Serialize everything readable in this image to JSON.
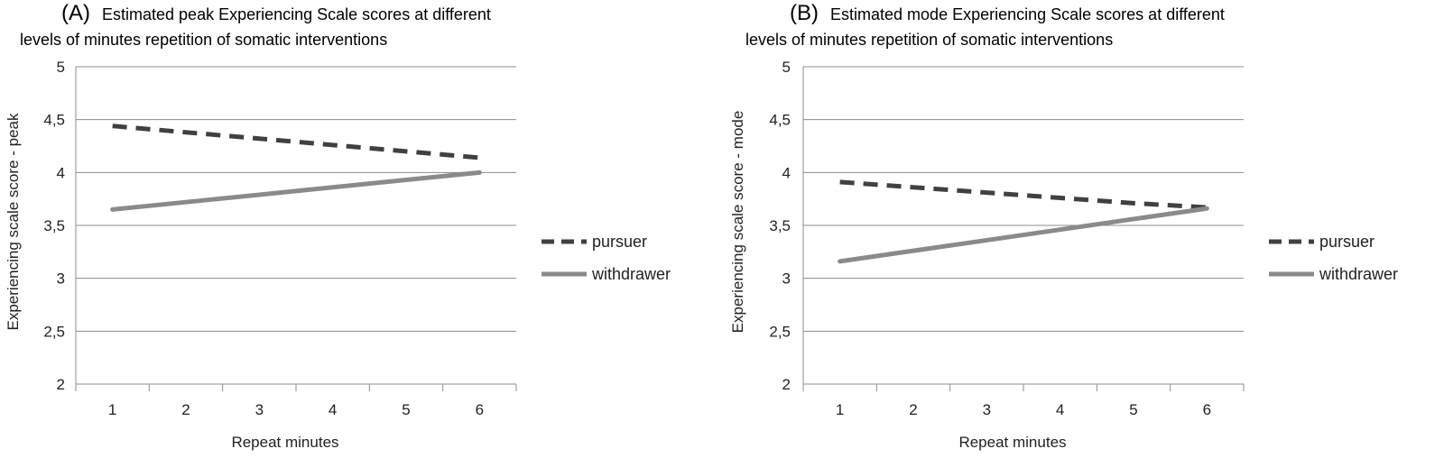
{
  "chart_data": [
    {
      "type": "line",
      "panel_label": "(A)",
      "title_line1": "Estimated peak Experiencing Scale scores at different",
      "title_line2": "levels of minutes repetition  of somatic interventions",
      "xlabel": "Repeat minutes",
      "ylabel": "Experiencing scale score - peak",
      "categories": [
        1,
        2,
        3,
        4,
        5,
        6
      ],
      "ylim": [
        2,
        5
      ],
      "yticks": [
        "2",
        "2,5",
        "3",
        "3,5",
        "4",
        "4,5",
        "5"
      ],
      "grid": true,
      "legend_position": "right",
      "series": [
        {
          "name": "pursuer",
          "style": "dashed",
          "color": "#404040",
          "values": [
            4.44,
            4.38,
            4.32,
            4.26,
            4.2,
            4.14
          ]
        },
        {
          "name": "withdrawer",
          "style": "solid",
          "color": "#8a8a8a",
          "values": [
            3.65,
            3.72,
            3.79,
            3.86,
            3.93,
            4.0
          ]
        }
      ]
    },
    {
      "type": "line",
      "panel_label": "(B)",
      "title_line1": "Estimated mode  Experiencing Scale scores at different",
      "title_line2": "levels of minutes repetition  of somatic interventions",
      "xlabel": "Repeat minutes",
      "ylabel": "Experiencing scale score - mode",
      "categories": [
        1,
        2,
        3,
        4,
        5,
        6
      ],
      "ylim": [
        2,
        5
      ],
      "yticks": [
        "2",
        "2,5",
        "3",
        "3,5",
        "4",
        "4,5",
        "5"
      ],
      "grid": true,
      "legend_position": "right",
      "series": [
        {
          "name": "pursuer",
          "style": "dashed",
          "color": "#404040",
          "values": [
            3.91,
            3.86,
            3.81,
            3.76,
            3.71,
            3.67
          ]
        },
        {
          "name": "withdrawer",
          "style": "solid",
          "color": "#8a8a8a",
          "values": [
            3.16,
            3.26,
            3.36,
            3.46,
            3.56,
            3.66
          ]
        }
      ]
    }
  ]
}
